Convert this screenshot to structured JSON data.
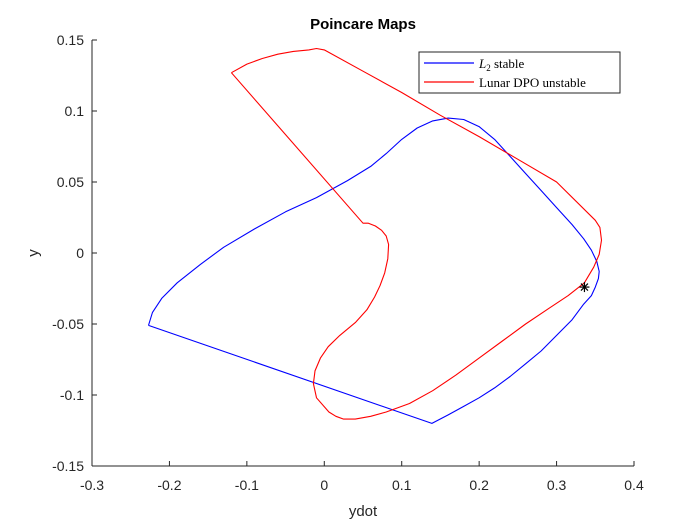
{
  "chart_data": {
    "type": "line",
    "title": "Poincare Maps",
    "xlabel": "ydot",
    "ylabel": "y",
    "xlim": [
      -0.3,
      0.4
    ],
    "ylim": [
      -0.15,
      0.15
    ],
    "xticks": [
      -0.3,
      -0.2,
      -0.1,
      0,
      0.1,
      0.2,
      0.3,
      0.4
    ],
    "yticks": [
      -0.15,
      -0.1,
      -0.05,
      0,
      0.05,
      0.1,
      0.15
    ],
    "xtick_labels": [
      "-0.3",
      "-0.2",
      "-0.1",
      "0",
      "0.1",
      "0.2",
      "0.3",
      "0.4"
    ],
    "ytick_labels": [
      "-0.15",
      "-0.1",
      "-0.05",
      "0",
      "0.05",
      "0.1",
      "0.15"
    ],
    "grid": false,
    "legend_position": "top-right",
    "series": [
      {
        "name": "L2 stable",
        "legend_main": "L",
        "legend_sub": "2",
        "legend_rest": " stable",
        "color": "#0000ff",
        "x": [
          -0.227,
          -0.222,
          -0.21,
          -0.19,
          -0.16,
          -0.13,
          -0.09,
          -0.05,
          -0.01,
          0.03,
          0.06,
          0.08,
          0.1,
          0.12,
          0.14,
          0.16,
          0.18,
          0.2,
          0.22,
          0.24,
          0.26,
          0.28,
          0.3,
          0.32,
          0.335,
          0.345,
          0.352,
          0.355,
          0.354,
          0.35,
          0.345,
          0.335,
          0.32,
          0.3,
          0.28,
          0.26,
          0.24,
          0.22,
          0.2,
          0.18,
          0.16,
          0.139,
          -0.227
        ],
        "y": [
          -0.051,
          -0.042,
          -0.032,
          -0.021,
          -0.008,
          0.004,
          0.017,
          0.029,
          0.039,
          0.051,
          0.061,
          0.07,
          0.08,
          0.088,
          0.093,
          0.095,
          0.094,
          0.089,
          0.08,
          0.068,
          0.056,
          0.044,
          0.032,
          0.02,
          0.01,
          0.002,
          -0.006,
          -0.013,
          -0.018,
          -0.024,
          -0.03,
          -0.036,
          -0.047,
          -0.058,
          -0.069,
          -0.078,
          -0.087,
          -0.095,
          -0.102,
          -0.108,
          -0.114,
          -0.12,
          -0.051
        ]
      },
      {
        "name": "Lunar DPO unstable",
        "legend_main": "Lunar DPO unstable",
        "legend_sub": "",
        "legend_rest": "",
        "color": "#ff0000",
        "x": [
          -0.12,
          -0.1,
          -0.08,
          -0.06,
          -0.04,
          -0.02,
          -0.01,
          0.0,
          0.05,
          0.1,
          0.15,
          0.2,
          0.25,
          0.3,
          0.35,
          0.356,
          0.358,
          0.355,
          0.348,
          0.336,
          0.315,
          0.29,
          0.26,
          0.23,
          0.2,
          0.17,
          0.14,
          0.11,
          0.08,
          0.06,
          0.04,
          0.025,
          0.015,
          0.006,
          -0.01,
          -0.014,
          -0.012,
          -0.005,
          0.005,
          0.02,
          0.04,
          0.055,
          0.065,
          0.072,
          0.078,
          0.082,
          0.083,
          0.08,
          0.074,
          0.066,
          0.057,
          0.05,
          -0.12
        ],
        "y": [
          0.127,
          0.133,
          0.137,
          0.14,
          0.142,
          0.143,
          0.144,
          0.143,
          0.128,
          0.113,
          0.097,
          0.082,
          0.066,
          0.05,
          0.023,
          0.018,
          0.009,
          -0.001,
          -0.01,
          -0.021,
          -0.03,
          -0.039,
          -0.05,
          -0.062,
          -0.074,
          -0.086,
          -0.097,
          -0.106,
          -0.112,
          -0.115,
          -0.117,
          -0.117,
          -0.115,
          -0.112,
          -0.102,
          -0.092,
          -0.083,
          -0.074,
          -0.066,
          -0.058,
          -0.049,
          -0.04,
          -0.031,
          -0.023,
          -0.014,
          -0.004,
          0.006,
          0.012,
          0.016,
          0.019,
          0.021,
          0.021,
          0.127
        ]
      }
    ],
    "marker": {
      "x": 0.336,
      "y": -0.024,
      "symbol": "*",
      "color": "#000000"
    }
  }
}
